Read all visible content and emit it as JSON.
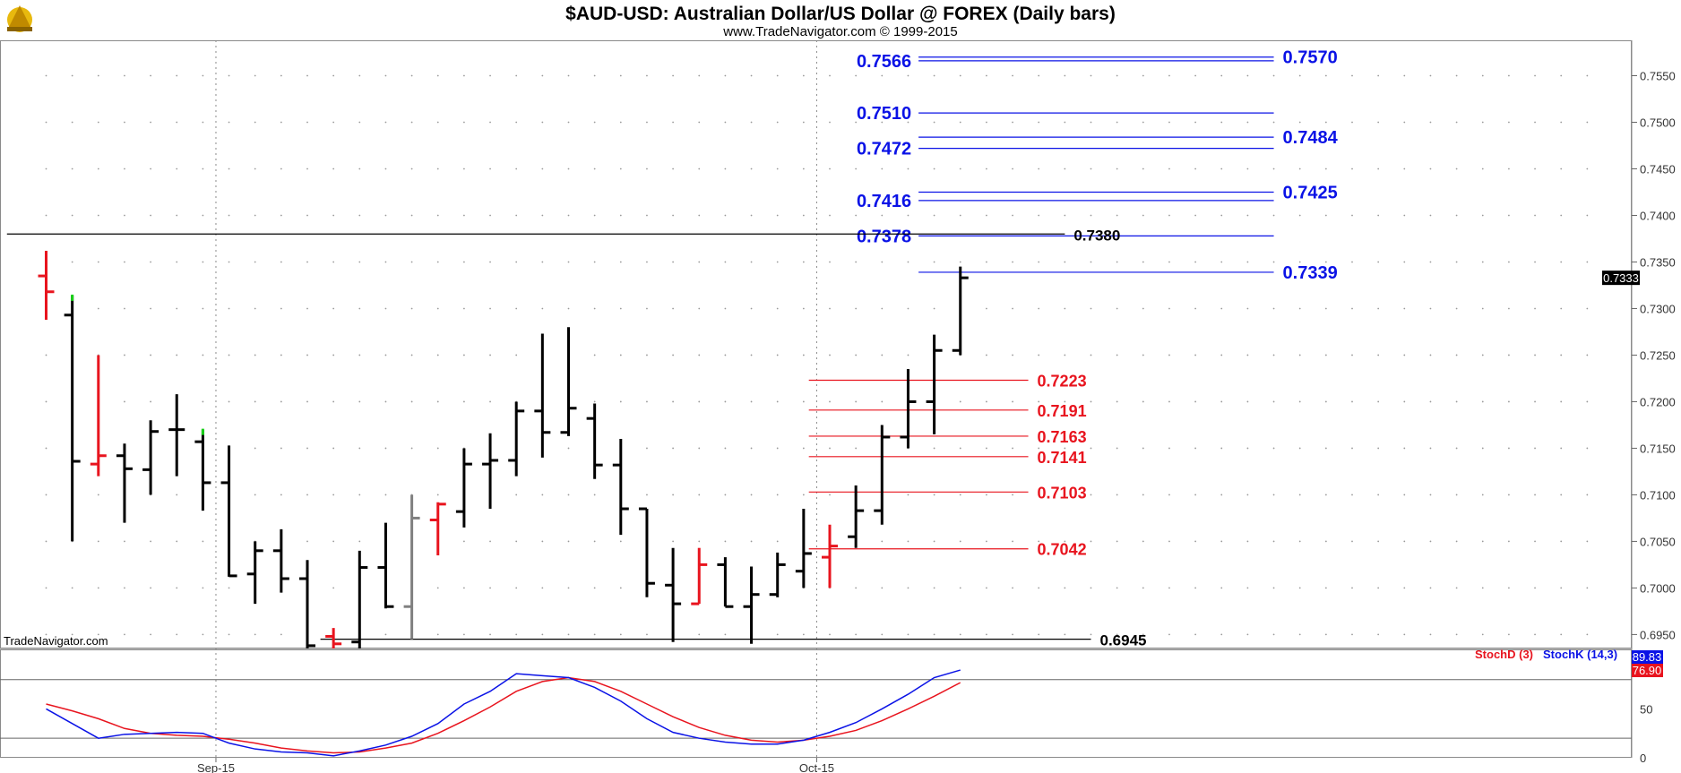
{
  "header": {
    "title": "$AUD-USD:  Australian Dollar/US Dollar @ FOREX  (Daily bars)",
    "subtitle": "www.TradeNavigator.com © 1999-2015",
    "watermark": "TradeNavigator.com"
  },
  "chart_data": {
    "type": "ohlc",
    "grid": "dotted",
    "price_axis": {
      "ylim": [
        0.6935,
        0.7588
      ],
      "ticks": [
        "0.7550",
        "0.7500",
        "0.7450",
        "0.7400",
        "0.7350",
        "0.7300",
        "0.7250",
        "0.7200",
        "0.7150",
        "0.7100",
        "0.7050",
        "0.7000",
        "0.6950"
      ],
      "last_price": "0.7333"
    },
    "x_labels": [
      {
        "label": "Sep-15",
        "bar": 6.5
      },
      {
        "label": "Oct-15",
        "bar": 29.5
      }
    ],
    "bars": [
      {
        "o": 0.7335,
        "h": 0.7362,
        "l": 0.7288,
        "c": 0.7318,
        "color": "red"
      },
      {
        "o": 0.7293,
        "h": 0.7314,
        "l": 0.705,
        "c": 0.7136,
        "color": "black",
        "tick": "green"
      },
      {
        "o": 0.7133,
        "h": 0.725,
        "l": 0.712,
        "c": 0.7142,
        "color": "red"
      },
      {
        "o": 0.7142,
        "h": 0.7155,
        "l": 0.707,
        "c": 0.7128,
        "color": "black"
      },
      {
        "o": 0.7127,
        "h": 0.718,
        "l": 0.71,
        "c": 0.7168,
        "color": "black"
      },
      {
        "o": 0.717,
        "h": 0.7208,
        "l": 0.712,
        "c": 0.717,
        "color": "black"
      },
      {
        "o": 0.7157,
        "h": 0.717,
        "l": 0.7083,
        "c": 0.7113,
        "color": "black",
        "tick": "green"
      },
      {
        "o": 0.7113,
        "h": 0.7153,
        "l": 0.7012,
        "c": 0.7013,
        "color": "black"
      },
      {
        "o": 0.7015,
        "h": 0.705,
        "l": 0.6983,
        "c": 0.704,
        "color": "black"
      },
      {
        "o": 0.704,
        "h": 0.7063,
        "l": 0.6995,
        "c": 0.701,
        "color": "black"
      },
      {
        "o": 0.701,
        "h": 0.703,
        "l": 0.6935,
        "c": 0.6938,
        "color": "black"
      },
      {
        "o": 0.6948,
        "h": 0.6957,
        "l": 0.6935,
        "c": 0.694,
        "color": "red"
      },
      {
        "o": 0.6942,
        "h": 0.704,
        "l": 0.6935,
        "c": 0.7022,
        "color": "black"
      },
      {
        "o": 0.7022,
        "h": 0.707,
        "l": 0.6978,
        "c": 0.698,
        "color": "black"
      },
      {
        "o": 0.698,
        "h": 0.71,
        "l": 0.6945,
        "c": 0.7075,
        "color": "gray"
      },
      {
        "o": 0.7073,
        "h": 0.7092,
        "l": 0.7035,
        "c": 0.709,
        "color": "red"
      },
      {
        "o": 0.7082,
        "h": 0.715,
        "l": 0.7065,
        "c": 0.7133,
        "color": "black"
      },
      {
        "o": 0.7133,
        "h": 0.7166,
        "l": 0.7085,
        "c": 0.7137,
        "color": "black"
      },
      {
        "o": 0.7137,
        "h": 0.72,
        "l": 0.712,
        "c": 0.719,
        "color": "black"
      },
      {
        "o": 0.719,
        "h": 0.7273,
        "l": 0.714,
        "c": 0.7167,
        "color": "black"
      },
      {
        "o": 0.7167,
        "h": 0.728,
        "l": 0.7163,
        "c": 0.7193,
        "color": "black"
      },
      {
        "o": 0.7182,
        "h": 0.7198,
        "l": 0.7117,
        "c": 0.7132,
        "color": "black"
      },
      {
        "o": 0.7132,
        "h": 0.716,
        "l": 0.7057,
        "c": 0.7085,
        "color": "black"
      },
      {
        "o": 0.7085,
        "h": 0.7085,
        "l": 0.699,
        "c": 0.7005,
        "color": "black"
      },
      {
        "o": 0.7003,
        "h": 0.7043,
        "l": 0.6942,
        "c": 0.6983,
        "color": "black"
      },
      {
        "o": 0.6983,
        "h": 0.7043,
        "l": 0.6983,
        "c": 0.7025,
        "color": "red"
      },
      {
        "o": 0.7025,
        "h": 0.7033,
        "l": 0.698,
        "c": 0.698,
        "color": "black"
      },
      {
        "o": 0.698,
        "h": 0.7023,
        "l": 0.694,
        "c": 0.6993,
        "color": "black"
      },
      {
        "o": 0.6993,
        "h": 0.7038,
        "l": 0.699,
        "c": 0.7025,
        "color": "black"
      },
      {
        "o": 0.7018,
        "h": 0.7085,
        "l": 0.7,
        "c": 0.7037,
        "color": "black"
      },
      {
        "o": 0.7033,
        "h": 0.7068,
        "l": 0.7,
        "c": 0.7045,
        "color": "red"
      },
      {
        "o": 0.7055,
        "h": 0.711,
        "l": 0.7043,
        "c": 0.7083,
        "color": "black"
      },
      {
        "o": 0.7083,
        "h": 0.7175,
        "l": 0.7068,
        "c": 0.7162,
        "color": "black"
      },
      {
        "o": 0.7162,
        "h": 0.7235,
        "l": 0.715,
        "c": 0.72,
        "color": "black"
      },
      {
        "o": 0.72,
        "h": 0.7272,
        "l": 0.7165,
        "c": 0.7255,
        "color": "black"
      },
      {
        "o": 0.7255,
        "h": 0.7345,
        "l": 0.725,
        "c": 0.7333,
        "color": "black"
      }
    ],
    "levels": [
      {
        "value": 0.7566,
        "label": "0.7566",
        "color": "#0a12e6",
        "from": 33.4,
        "to": 47.0,
        "label_side": "left"
      },
      {
        "value": 0.757,
        "label": "0.7570",
        "color": "#0a12e6",
        "from": 33.4,
        "to": 47.0,
        "label_side": "right"
      },
      {
        "value": 0.751,
        "label": "0.7510",
        "color": "#0a12e6",
        "from": 33.4,
        "to": 47.0,
        "label_side": "left"
      },
      {
        "value": 0.7484,
        "label": "0.7484",
        "color": "#0a12e6",
        "from": 33.4,
        "to": 47.0,
        "label_side": "right"
      },
      {
        "value": 0.7472,
        "label": "0.7472",
        "color": "#0a12e6",
        "from": 33.4,
        "to": 47.0,
        "label_side": "left"
      },
      {
        "value": 0.7425,
        "label": "0.7425",
        "color": "#0a12e6",
        "from": 33.4,
        "to": 47.0,
        "label_side": "right"
      },
      {
        "value": 0.7416,
        "label": "0.7416",
        "color": "#0a12e6",
        "from": 33.4,
        "to": 47.0,
        "label_side": "left"
      },
      {
        "value": 0.7378,
        "label": "0.7378",
        "color": "#0a12e6",
        "from": 33.4,
        "to": 47.0,
        "label_side": "left"
      },
      {
        "value": 0.7339,
        "label": "0.7339",
        "color": "#0a12e6",
        "from": 33.4,
        "to": 47.0,
        "label_side": "right"
      },
      {
        "value": 0.7223,
        "label": "0.7223",
        "color": "#e8141e",
        "from": 29.2,
        "to": 37.6,
        "label_side": "right"
      },
      {
        "value": 0.7191,
        "label": "0.7191",
        "color": "#e8141e",
        "from": 29.2,
        "to": 37.6,
        "label_side": "right"
      },
      {
        "value": 0.7163,
        "label": "0.7163",
        "color": "#e8141e",
        "from": 29.2,
        "to": 37.6,
        "label_side": "right"
      },
      {
        "value": 0.7141,
        "label": "0.7141",
        "color": "#e8141e",
        "from": 29.2,
        "to": 37.6,
        "label_side": "right"
      },
      {
        "value": 0.7103,
        "label": "0.7103",
        "color": "#e8141e",
        "from": 29.2,
        "to": 37.6,
        "label_side": "right"
      },
      {
        "value": 0.7042,
        "label": "0.7042",
        "color": "#e8141e",
        "from": 29.2,
        "to": 37.6,
        "label_side": "right"
      },
      {
        "value": 0.738,
        "label": "0.7380",
        "color": "#000000",
        "from": -1.5,
        "to": 39.0,
        "label_side": "end"
      },
      {
        "value": 0.6945,
        "label": "0.6945",
        "color": "#000000",
        "from": 10.5,
        "to": 40.0,
        "label_side": "end"
      }
    ],
    "stochastic": {
      "ylim": [
        0,
        110
      ],
      "ticks": [
        "50",
        "0"
      ],
      "upper_band": 80,
      "lower_band": 20,
      "d_label": "StochD (3)",
      "k_label": "StochK (14,3)",
      "d_value": "76.90",
      "k_value": "89.83",
      "d_color": "#e8141e",
      "k_color": "#0a12e6",
      "d_points": [
        {
          "bar": 0,
          "v": 55
        },
        {
          "bar": 1,
          "v": 48
        },
        {
          "bar": 2,
          "v": 40
        },
        {
          "bar": 3,
          "v": 30
        },
        {
          "bar": 4,
          "v": 25
        },
        {
          "bar": 5,
          "v": 23
        },
        {
          "bar": 6,
          "v": 22
        },
        {
          "bar": 7,
          "v": 19
        },
        {
          "bar": 8,
          "v": 15
        },
        {
          "bar": 9,
          "v": 10
        },
        {
          "bar": 10,
          "v": 7
        },
        {
          "bar": 11,
          "v": 5
        },
        {
          "bar": 12,
          "v": 6
        },
        {
          "bar": 13,
          "v": 10
        },
        {
          "bar": 14,
          "v": 15
        },
        {
          "bar": 15,
          "v": 25
        },
        {
          "bar": 16,
          "v": 38
        },
        {
          "bar": 17,
          "v": 52
        },
        {
          "bar": 18,
          "v": 68
        },
        {
          "bar": 19,
          "v": 78
        },
        {
          "bar": 20,
          "v": 82
        },
        {
          "bar": 21,
          "v": 78
        },
        {
          "bar": 22,
          "v": 68
        },
        {
          "bar": 23,
          "v": 55
        },
        {
          "bar": 24,
          "v": 42
        },
        {
          "bar": 25,
          "v": 31
        },
        {
          "bar": 26,
          "v": 23
        },
        {
          "bar": 27,
          "v": 18
        },
        {
          "bar": 28,
          "v": 16
        },
        {
          "bar": 29,
          "v": 18
        },
        {
          "bar": 30,
          "v": 22
        },
        {
          "bar": 31,
          "v": 28
        },
        {
          "bar": 32,
          "v": 38
        },
        {
          "bar": 33,
          "v": 50
        },
        {
          "bar": 34,
          "v": 63
        },
        {
          "bar": 35,
          "v": 76.9
        }
      ],
      "k_points": [
        {
          "bar": 0,
          "v": 50
        },
        {
          "bar": 1,
          "v": 35
        },
        {
          "bar": 2,
          "v": 20
        },
        {
          "bar": 3,
          "v": 24
        },
        {
          "bar": 4,
          "v": 25
        },
        {
          "bar": 5,
          "v": 26
        },
        {
          "bar": 6,
          "v": 25
        },
        {
          "bar": 7,
          "v": 15
        },
        {
          "bar": 8,
          "v": 9
        },
        {
          "bar": 9,
          "v": 6
        },
        {
          "bar": 10,
          "v": 5
        },
        {
          "bar": 11,
          "v": 2
        },
        {
          "bar": 12,
          "v": 7
        },
        {
          "bar": 13,
          "v": 13
        },
        {
          "bar": 14,
          "v": 22
        },
        {
          "bar": 15,
          "v": 35
        },
        {
          "bar": 16,
          "v": 55
        },
        {
          "bar": 17,
          "v": 68
        },
        {
          "bar": 18,
          "v": 86
        },
        {
          "bar": 19,
          "v": 84
        },
        {
          "bar": 20,
          "v": 82
        },
        {
          "bar": 21,
          "v": 72
        },
        {
          "bar": 22,
          "v": 58
        },
        {
          "bar": 23,
          "v": 40
        },
        {
          "bar": 24,
          "v": 26
        },
        {
          "bar": 25,
          "v": 20
        },
        {
          "bar": 26,
          "v": 16
        },
        {
          "bar": 27,
          "v": 14
        },
        {
          "bar": 28,
          "v": 14
        },
        {
          "bar": 29,
          "v": 18
        },
        {
          "bar": 30,
          "v": 26
        },
        {
          "bar": 31,
          "v": 36
        },
        {
          "bar": 32,
          "v": 50
        },
        {
          "bar": 33,
          "v": 65
        },
        {
          "bar": 34,
          "v": 82
        },
        {
          "bar": 35,
          "v": 89.8
        }
      ]
    }
  }
}
